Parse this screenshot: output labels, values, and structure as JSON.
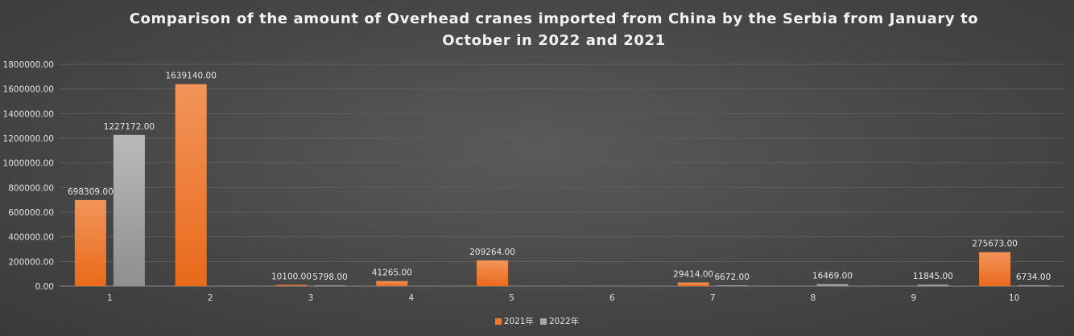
{
  "colors": {
    "series_2021": "#ee7a2c",
    "series_2022": "#a6a6a6"
  },
  "chart_data": {
    "type": "bar",
    "title": "Comparison of the amount of Overhead cranes imported from China by the Serbia from January to October in 2022 and 2021",
    "title_lines": [
      "Comparison of the amount of Overhead cranes imported from China by the Serbia from January to",
      "October in 2022 and 2021"
    ],
    "categories": [
      "1",
      "2",
      "3",
      "4",
      "5",
      "6",
      "7",
      "8",
      "9",
      "10"
    ],
    "series": [
      {
        "name": "2021年",
        "values": [
          698309,
          1639140,
          10100,
          41265,
          209264,
          null,
          29414,
          null,
          null,
          275673
        ],
        "labels": [
          "698309.00",
          "1639140.00",
          "10100.00",
          "41265.00",
          "209264.00",
          "",
          "29414.00",
          "",
          "",
          "275673.00"
        ]
      },
      {
        "name": "2022年",
        "values": [
          1227172,
          null,
          5798,
          null,
          null,
          null,
          6672,
          16469,
          11845,
          6734
        ],
        "labels": [
          "1227172.00",
          "",
          "5798.00",
          "",
          "",
          "",
          "6672.00",
          "16469.00",
          "11845.00",
          "6734.00"
        ]
      }
    ],
    "ylim": [
      0,
      1800000
    ],
    "yticks": [
      0,
      200000,
      400000,
      600000,
      800000,
      1000000,
      1200000,
      1400000,
      1600000,
      1800000
    ],
    "ytick_labels": [
      "0.00",
      "200000.00",
      "400000.00",
      "600000.00",
      "800000.00",
      "1000000.00",
      "1200000.00",
      "1400000.00",
      "1600000.00",
      "1800000.00"
    ],
    "xlabel": "",
    "ylabel": "",
    "grid": true,
    "legend": "bottom"
  }
}
